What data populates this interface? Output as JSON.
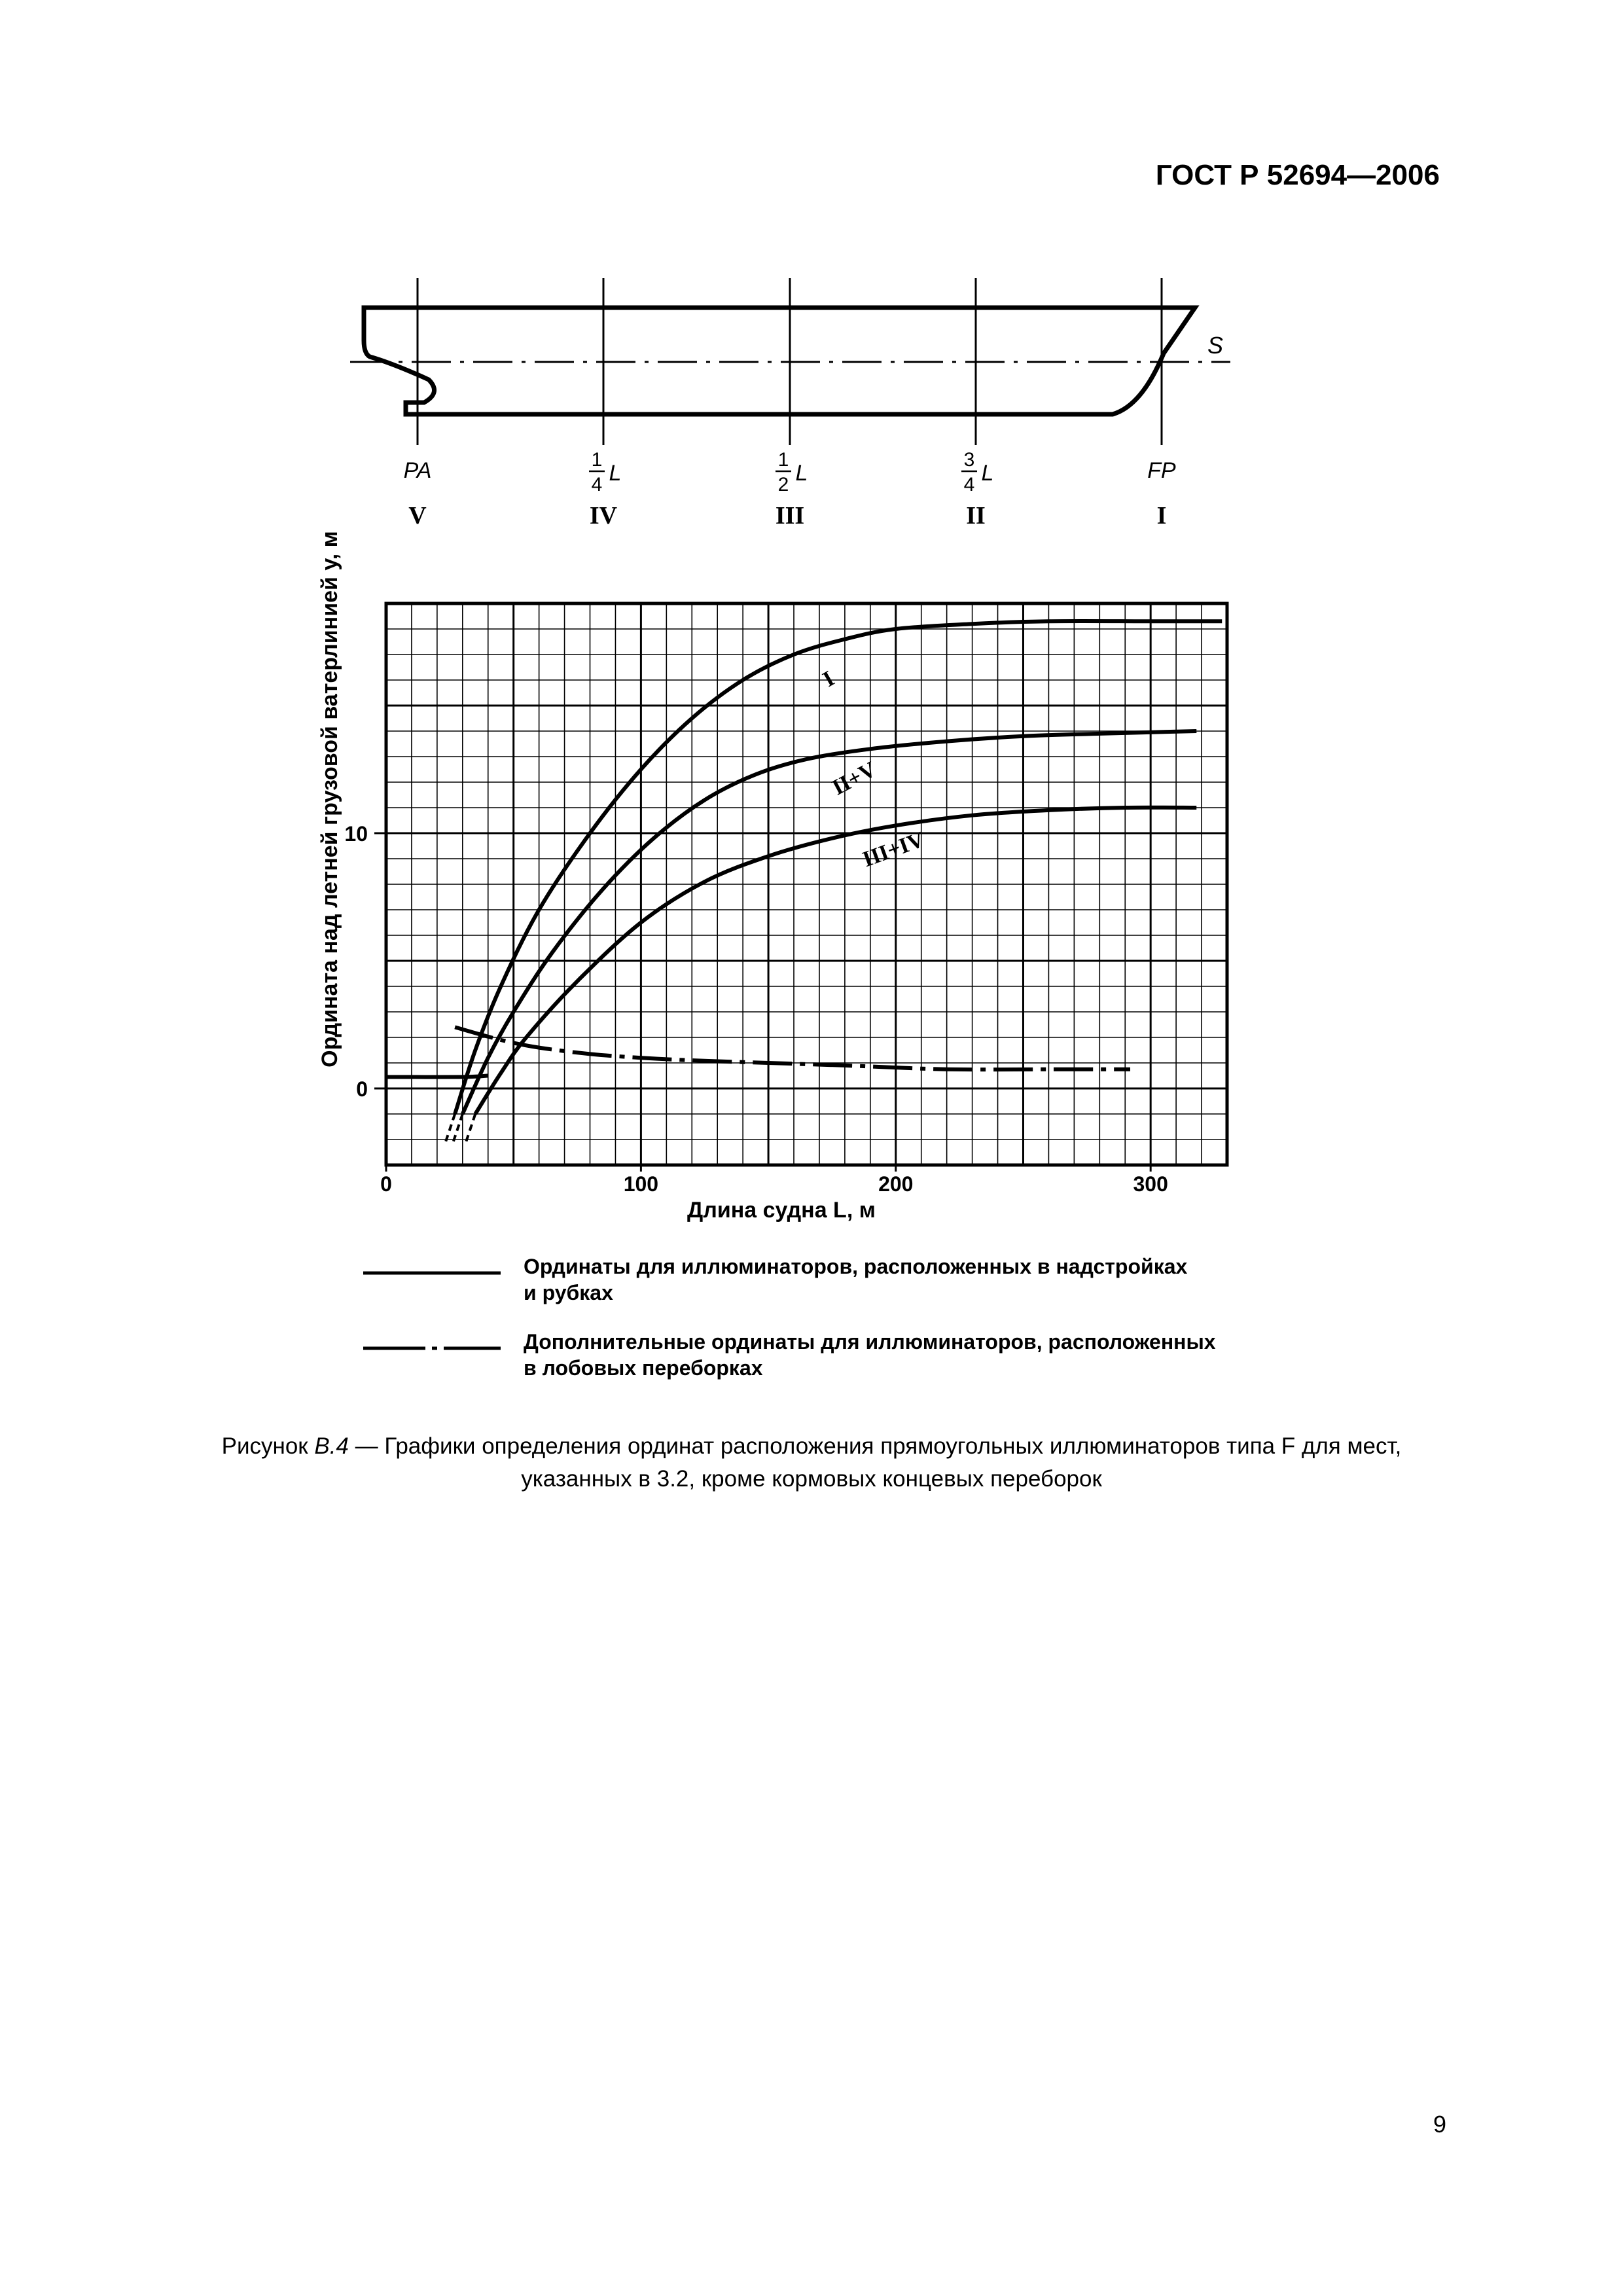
{
  "header": {
    "doc_number": "ГОСТ Р 52694—2006"
  },
  "ship_diagram": {
    "waterline_label": "S",
    "stations": [
      {
        "label": "PA",
        "numerator": "",
        "denominator": "",
        "suffix": "",
        "roman": "V"
      },
      {
        "label": "",
        "numerator": "1",
        "denominator": "4",
        "suffix": "L",
        "roman": "IV"
      },
      {
        "label": "",
        "numerator": "1",
        "denominator": "2",
        "suffix": "L",
        "roman": "III"
      },
      {
        "label": "",
        "numerator": "3",
        "denominator": "4",
        "suffix": "L",
        "roman": "II"
      },
      {
        "label": "FP",
        "numerator": "",
        "denominator": "",
        "suffix": "",
        "roman": "I"
      }
    ]
  },
  "chart_data": {
    "type": "line",
    "ylabel": "Ордината над летней грузовой ватерлинией y, м",
    "xlabel": "Длина судна L, м",
    "xlim": [
      0,
      330
    ],
    "ylim": [
      -3,
      19
    ],
    "x_ticks": [
      0,
      100,
      200,
      300
    ],
    "y_ticks": [
      0,
      10
    ],
    "grid": true,
    "series": [
      {
        "name": "I",
        "style": "solid",
        "points": [
          [
            27,
            -1
          ],
          [
            35,
            1.5
          ],
          [
            45,
            4
          ],
          [
            60,
            7
          ],
          [
            80,
            10
          ],
          [
            100,
            12.5
          ],
          [
            120,
            14.5
          ],
          [
            140,
            16
          ],
          [
            160,
            17
          ],
          [
            180,
            17.6
          ],
          [
            200,
            18
          ],
          [
            230,
            18.2
          ],
          [
            260,
            18.3
          ],
          [
            300,
            18.3
          ],
          [
            328,
            18.3
          ]
        ]
      },
      {
        "name": "II+V",
        "style": "solid",
        "points": [
          [
            30,
            -1
          ],
          [
            40,
            1.2
          ],
          [
            50,
            3
          ],
          [
            65,
            5.3
          ],
          [
            85,
            7.8
          ],
          [
            105,
            9.8
          ],
          [
            125,
            11.3
          ],
          [
            145,
            12.3
          ],
          [
            165,
            12.9
          ],
          [
            190,
            13.3
          ],
          [
            220,
            13.6
          ],
          [
            250,
            13.8
          ],
          [
            280,
            13.9
          ],
          [
            318,
            14
          ]
        ]
      },
      {
        "name": "III+IV",
        "style": "solid",
        "points": [
          [
            35,
            -1
          ],
          [
            45,
            0.6
          ],
          [
            55,
            2
          ],
          [
            75,
            4.2
          ],
          [
            100,
            6.5
          ],
          [
            125,
            8.1
          ],
          [
            150,
            9.1
          ],
          [
            175,
            9.8
          ],
          [
            200,
            10.3
          ],
          [
            230,
            10.7
          ],
          [
            260,
            10.9
          ],
          [
            290,
            11
          ],
          [
            318,
            11
          ]
        ]
      },
      {
        "name": "",
        "style": "solid",
        "points": [
          [
            0,
            0.45
          ],
          [
            30,
            0.45
          ],
          [
            40,
            0.5
          ]
        ]
      },
      {
        "name": "",
        "style": "dash-dot",
        "points": [
          [
            27,
            2.4
          ],
          [
            45,
            1.9
          ],
          [
            60,
            1.6
          ],
          [
            80,
            1.35
          ],
          [
            100,
            1.2
          ],
          [
            120,
            1.1
          ],
          [
            150,
            1
          ],
          [
            180,
            0.9
          ],
          [
            220,
            0.75
          ],
          [
            260,
            0.75
          ],
          [
            292,
            0.75
          ]
        ]
      }
    ]
  },
  "legend": {
    "solid_text": [
      "Ординаты для иллюминаторов, расположенных в надстройках",
      "и рубках"
    ],
    "dashdot_text": [
      "Дополнительные ординаты для иллюминаторов, расположенных",
      "в лобовых переборках"
    ]
  },
  "caption": {
    "prefix": "Рисунок ",
    "fig_id": "В.4",
    "line1": " — Графики определения ординат расположения прямоугольных иллюминаторов типа F для мест,",
    "line2": "указанных в 3.2, кроме кормовых концевых переборок"
  },
  "page_number": "9"
}
